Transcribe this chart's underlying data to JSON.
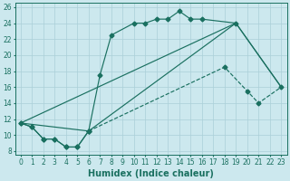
{
  "xlabel": "Humidex (Indice chaleur)",
  "bg_color": "#cce8ee",
  "grid_color": "#aacfd8",
  "line_color": "#1a7060",
  "xlim": [
    -0.5,
    23.5
  ],
  "ylim": [
    7.5,
    26.5
  ],
  "xticks": [
    0,
    1,
    2,
    3,
    4,
    5,
    6,
    7,
    8,
    9,
    10,
    11,
    12,
    13,
    14,
    15,
    16,
    17,
    18,
    19,
    20,
    21,
    22,
    23
  ],
  "yticks": [
    8,
    10,
    12,
    14,
    16,
    18,
    20,
    22,
    24,
    26
  ],
  "curve1_x": [
    0,
    1,
    2,
    3,
    4,
    5,
    6,
    7,
    8,
    10,
    11,
    12,
    13,
    14,
    15,
    16,
    19
  ],
  "curve1_y": [
    11.5,
    11.0,
    9.5,
    9.5,
    8.5,
    8.5,
    10.5,
    17.5,
    22.5,
    24.0,
    24.0,
    24.5,
    24.5,
    25.5,
    24.5,
    24.5,
    24.0
  ],
  "curve2_x": [
    0,
    1,
    2,
    3,
    4,
    5,
    6,
    18,
    20,
    21,
    23
  ],
  "curve2_y": [
    11.5,
    11.0,
    9.5,
    9.5,
    8.5,
    8.5,
    10.5,
    18.5,
    15.5,
    14.0,
    16.0
  ],
  "curve3_x": [
    0,
    19,
    23
  ],
  "curve3_y": [
    11.5,
    24.0,
    16.0
  ],
  "curve4_x": [
    0,
    6,
    19,
    23
  ],
  "curve4_y": [
    11.5,
    10.5,
    24.0,
    16.0
  ],
  "marker": "D",
  "marker_size": 2.5,
  "lw": 0.85,
  "font_size_label": 7,
  "font_size_tick": 5.5
}
